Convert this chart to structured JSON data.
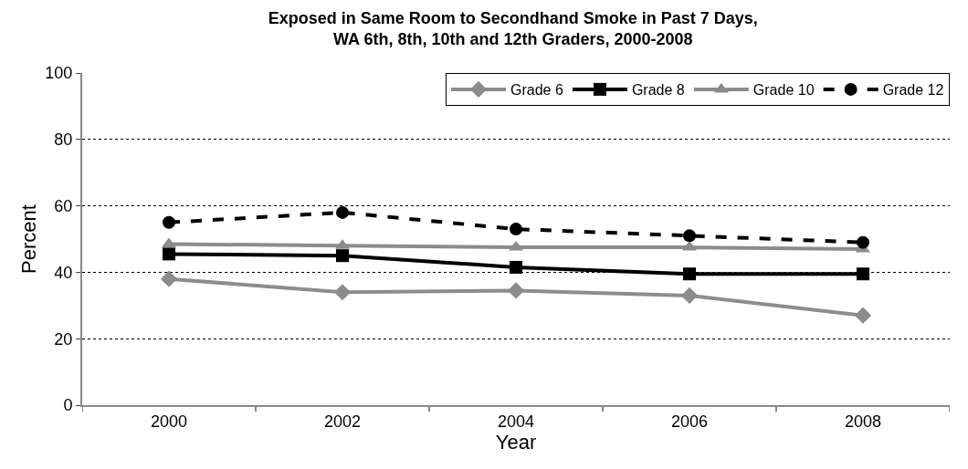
{
  "chart_data": {
    "type": "line",
    "title": "Exposed in Same Room to Secondhand Smoke in Past 7 Days,\nWA 6th, 8th, 10th and 12th Graders, 2000-2008",
    "xlabel": "Year",
    "ylabel": "Percent",
    "categories": [
      "2000",
      "2002",
      "2004",
      "2006",
      "2008"
    ],
    "series": [
      {
        "name": "Grade 6",
        "color": "#8c8c8c",
        "marker": "diamond",
        "line_style": "solid",
        "values": [
          38,
          34,
          34.5,
          33,
          27
        ]
      },
      {
        "name": "Grade 8",
        "color": "#000000",
        "marker": "square",
        "line_style": "solid",
        "values": [
          45.5,
          45,
          41.5,
          39.5,
          39.5
        ]
      },
      {
        "name": "Grade 10",
        "color": "#8c8c8c",
        "marker": "triangle",
        "line_style": "solid",
        "values": [
          48.5,
          48,
          47.5,
          47.5,
          47
        ]
      },
      {
        "name": "Grade 12",
        "color": "#000000",
        "marker": "circle",
        "line_style": "dashed",
        "values": [
          55,
          58,
          53,
          51,
          49
        ]
      }
    ],
    "ylim": [
      0,
      100
    ],
    "yticks": [
      0,
      20,
      40,
      60,
      80,
      100
    ],
    "grid": "y",
    "legend": "top right"
  }
}
